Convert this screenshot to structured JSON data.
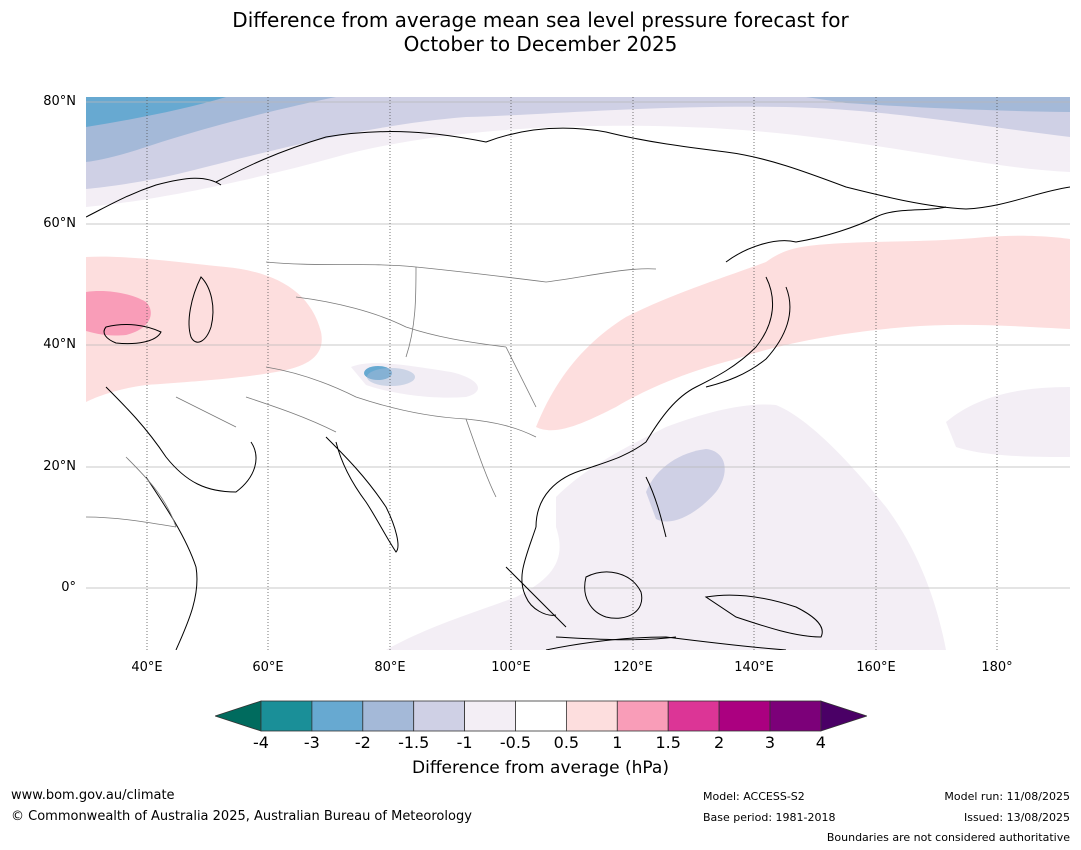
{
  "title": {
    "line1": "Difference from average mean sea level pressure forecast for",
    "line2": "October to December 2025"
  },
  "map": {
    "lat_labels": [
      "80°N",
      "60°N",
      "40°N",
      "20°N",
      "0°"
    ],
    "lon_labels": [
      "40°E",
      "60°E",
      "80°E",
      "100°E",
      "120°E",
      "140°E",
      "160°E",
      "180°"
    ]
  },
  "colorbar": {
    "ticks": [
      "-4",
      "-3",
      "-2",
      "-1.5",
      "-1",
      "-0.5",
      "0.5",
      "1",
      "1.5",
      "2",
      "3",
      "4"
    ],
    "colors": [
      "#006b5e",
      "#1a8f98",
      "#67a9d1",
      "#a4b9d8",
      "#cfd0e5",
      "#f3eef5",
      "#ffffff",
      "#fddede",
      "#f99db8",
      "#dc3596",
      "#ab0080",
      "#7c0079",
      "#4a0066"
    ],
    "title": "Difference from average (hPa)"
  },
  "footer": {
    "website": "www.bom.gov.au/climate",
    "copyright": "© Commonwealth of Australia 2025, Australian Bureau of Meteorology",
    "model": "Model: ACCESS-S2",
    "base_period": "Base period: 1981-2018",
    "model_run": "Model run: 11/08/2025",
    "issued": "Issued: 13/08/2025",
    "disclaimer": "Boundaries are not considered authoritative"
  }
}
